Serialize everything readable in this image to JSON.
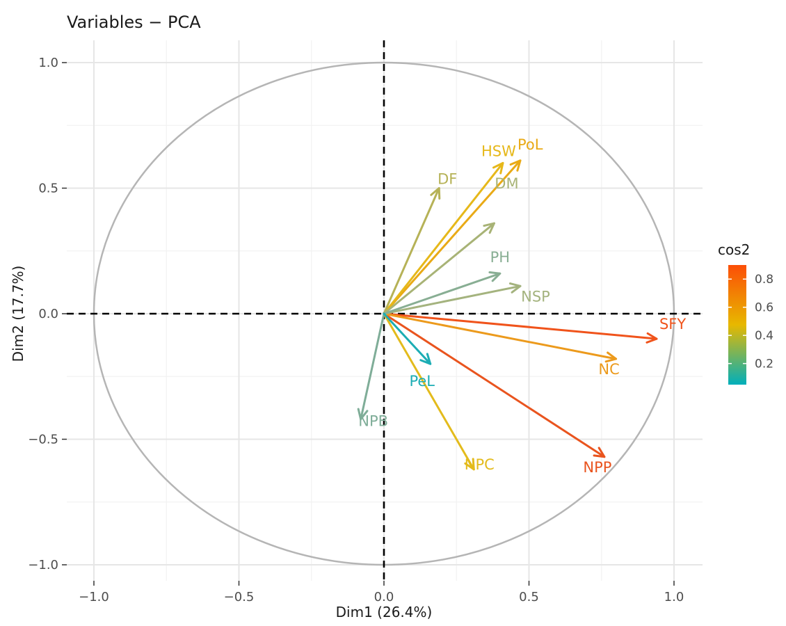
{
  "chart_data": {
    "type": "scatter",
    "title": "Variables − PCA",
    "xlabel": "Dim1 (26.4%)",
    "ylabel": "Dim2 (17.7%)",
    "xlim": [
      -1.0,
      1.0
    ],
    "ylim": [
      -1.0,
      1.0
    ],
    "x_ticks": [
      {
        "value": -1.0,
        "label": "−1.0"
      },
      {
        "value": -0.5,
        "label": "−0.5"
      },
      {
        "value": 0.0,
        "label": "0.0"
      },
      {
        "value": 0.5,
        "label": "0.5"
      },
      {
        "value": 1.0,
        "label": "1.0"
      }
    ],
    "y_ticks": [
      {
        "value": -1.0,
        "label": "−1.0"
      },
      {
        "value": -0.5,
        "label": "−0.5"
      },
      {
        "value": 0.0,
        "label": "0.0"
      },
      {
        "value": 0.5,
        "label": "0.5"
      },
      {
        "value": 1.0,
        "label": "1.0"
      }
    ],
    "grid": true,
    "legend_position": "right",
    "legend": {
      "title": "cos2",
      "min": 0.05,
      "max": 0.9,
      "ticks": [
        {
          "value": 0.2,
          "label": "0.2"
        },
        {
          "value": 0.4,
          "label": "0.4"
        },
        {
          "value": 0.6,
          "label": "0.6"
        },
        {
          "value": 0.8,
          "label": "0.8"
        }
      ],
      "colors": [
        "#00AFBB",
        "#E7B800",
        "#FC4E07"
      ]
    },
    "variables": [
      {
        "name": "SFY",
        "x": 0.94,
        "y": -0.1,
        "color": "#F0531B"
      },
      {
        "name": "NPP",
        "x": 0.76,
        "y": -0.57,
        "color": "#E9541E"
      },
      {
        "name": "NC",
        "x": 0.8,
        "y": -0.18,
        "color": "#EC9A1C"
      },
      {
        "name": "PoL",
        "x": 0.47,
        "y": 0.61,
        "color": "#E9AA16"
      },
      {
        "name": "HSW",
        "x": 0.41,
        "y": 0.6,
        "color": "#E6B81A"
      },
      {
        "name": "NPC",
        "x": 0.31,
        "y": -0.62,
        "color": "#E3BB1C"
      },
      {
        "name": "DF",
        "x": 0.19,
        "y": 0.5,
        "color": "#B6B257"
      },
      {
        "name": "DM",
        "x": 0.38,
        "y": 0.36,
        "color": "#A8B376"
      },
      {
        "name": "NSP",
        "x": 0.47,
        "y": 0.11,
        "color": "#A4B37E"
      },
      {
        "name": "PH",
        "x": 0.4,
        "y": 0.16,
        "color": "#88AE93"
      },
      {
        "name": "NPB",
        "x": -0.08,
        "y": -0.42,
        "color": "#7FAD98"
      },
      {
        "name": "PeL",
        "x": 0.16,
        "y": -0.2,
        "color": "#1CADB4"
      }
    ]
  }
}
